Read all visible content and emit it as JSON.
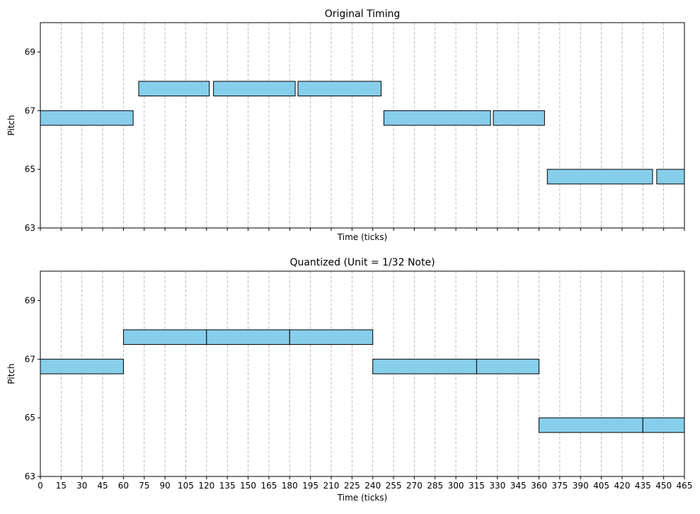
{
  "chart_data": [
    {
      "type": "bar",
      "title": "Original Timing",
      "xlabel": "Time (ticks)",
      "ylabel": "Pitch",
      "xlim": [
        0,
        465
      ],
      "ylim": [
        63,
        70
      ],
      "yticks": [
        63,
        65,
        67,
        69
      ],
      "xticks": [
        0,
        15,
        30,
        45,
        60,
        75,
        90,
        105,
        120,
        135,
        150,
        165,
        180,
        195,
        210,
        225,
        240,
        255,
        270,
        285,
        300,
        315,
        330,
        345,
        360,
        375,
        390,
        405,
        420,
        435,
        450,
        465
      ],
      "show_xtick_labels": false,
      "grid": "vertical dashed",
      "bar_color": "#87CEEB",
      "notes": [
        {
          "start": 0,
          "end": 67,
          "pitch": 67
        },
        {
          "start": 71,
          "end": 122,
          "pitch": 68
        },
        {
          "start": 125,
          "end": 184,
          "pitch": 68
        },
        {
          "start": 186,
          "end": 246,
          "pitch": 68
        },
        {
          "start": 248,
          "end": 325,
          "pitch": 67
        },
        {
          "start": 327,
          "end": 364,
          "pitch": 67
        },
        {
          "start": 366,
          "end": 442,
          "pitch": 65
        },
        {
          "start": 445,
          "end": 465,
          "pitch": 65
        }
      ]
    },
    {
      "type": "bar",
      "title": "Quantized (Unit = 1/32 Note)",
      "xlabel": "Time (ticks)",
      "ylabel": "Pitch",
      "xlim": [
        0,
        465
      ],
      "ylim": [
        63,
        70
      ],
      "yticks": [
        63,
        65,
        67,
        69
      ],
      "xticks": [
        0,
        15,
        30,
        45,
        60,
        75,
        90,
        105,
        120,
        135,
        150,
        165,
        180,
        195,
        210,
        225,
        240,
        255,
        270,
        285,
        300,
        315,
        330,
        345,
        360,
        375,
        390,
        405,
        420,
        435,
        450,
        465
      ],
      "show_xtick_labels": true,
      "grid": "vertical dashed",
      "bar_color": "#87CEEB",
      "notes": [
        {
          "start": 0,
          "end": 60,
          "pitch": 67
        },
        {
          "start": 60,
          "end": 120,
          "pitch": 68
        },
        {
          "start": 120,
          "end": 180,
          "pitch": 68
        },
        {
          "start": 180,
          "end": 240,
          "pitch": 68
        },
        {
          "start": 240,
          "end": 315,
          "pitch": 67
        },
        {
          "start": 315,
          "end": 360,
          "pitch": 67
        },
        {
          "start": 360,
          "end": 435,
          "pitch": 65
        },
        {
          "start": 435,
          "end": 465,
          "pitch": 65
        }
      ]
    }
  ]
}
